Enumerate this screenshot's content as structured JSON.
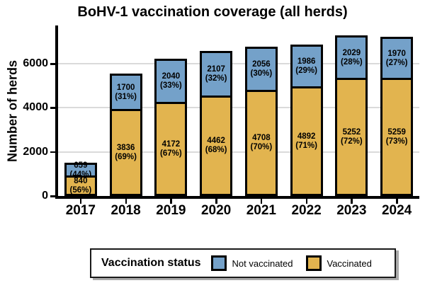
{
  "title": "BoHV-1 vaccination coverage (all herds)",
  "y_axis": {
    "label": "Number of herds",
    "tick_labels": [
      "0",
      "2000",
      "4000",
      "6000"
    ],
    "tick_values": [
      0,
      2000,
      4000,
      6000
    ]
  },
  "x_axis": {
    "tick_labels": [
      "2017",
      "2018",
      "2019",
      "2020",
      "2021",
      "2022",
      "2023",
      "2024"
    ]
  },
  "colors": {
    "not_vaccinated_blue": "#74A1C9",
    "vaccinated_gold": "#E2B44F",
    "gridline": "#DADADA",
    "axis": "#000000",
    "legend_shadow": "#AAAAAA"
  },
  "legend": {
    "title": "Vaccination status",
    "items": [
      {
        "label": "Not vaccinated",
        "color": "#74A1C9"
      },
      {
        "label": "Vaccinated",
        "color": "#E2B44F"
      }
    ]
  },
  "chart_data": {
    "type": "bar",
    "stacked": true,
    "title": "BoHV-1 vaccination coverage (all herds)",
    "xlabel": "",
    "ylabel": "Number of herds",
    "ylim": [
      0,
      7500
    ],
    "grid": "horizontal",
    "legend_position": "bottom",
    "categories": [
      "2017",
      "2018",
      "2019",
      "2020",
      "2021",
      "2022",
      "2023",
      "2024"
    ],
    "series": [
      {
        "name": "Not vaccinated",
        "color": "#74A1C9",
        "values": [
          659,
          1700,
          2040,
          2107,
          2056,
          1986,
          2029,
          1970
        ],
        "pct_labels": [
          "(44%)",
          "(31%)",
          "(33%)",
          "(32%)",
          "(30%)",
          "(29%)",
          "(28%)",
          "(27%)"
        ]
      },
      {
        "name": "Vaccinated",
        "color": "#E2B44F",
        "values": [
          840,
          3836,
          4172,
          4462,
          4708,
          4892,
          5252,
          5259
        ],
        "pct_labels": [
          "(56%)",
          "(69%)",
          "(67%)",
          "(68%)",
          "(70%)",
          "(71%)",
          "(72%)",
          "(73%)"
        ]
      }
    ]
  }
}
